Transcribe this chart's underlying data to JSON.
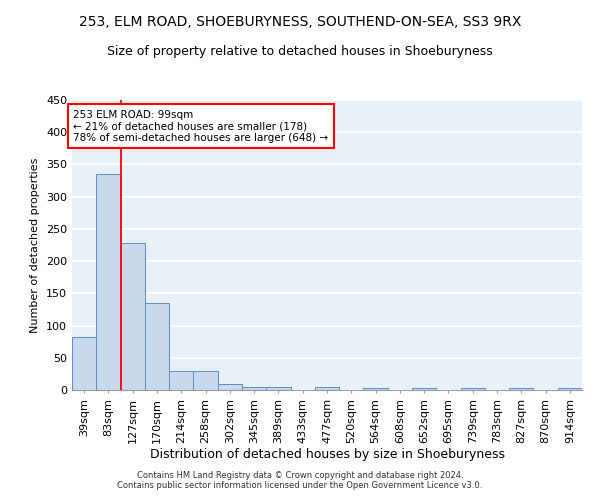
{
  "title1": "253, ELM ROAD, SHOEBURYNESS, SOUTHEND-ON-SEA, SS3 9RX",
  "title2": "Size of property relative to detached houses in Shoeburyness",
  "xlabel": "Distribution of detached houses by size in Shoeburyness",
  "ylabel": "Number of detached properties",
  "footnote": "Contains HM Land Registry data © Crown copyright and database right 2024.\nContains public sector information licensed under the Open Government Licence v3.0.",
  "categories": [
    "39sqm",
    "83sqm",
    "127sqm",
    "170sqm",
    "214sqm",
    "258sqm",
    "302sqm",
    "345sqm",
    "389sqm",
    "433sqm",
    "477sqm",
    "520sqm",
    "564sqm",
    "608sqm",
    "652sqm",
    "695sqm",
    "739sqm",
    "783sqm",
    "827sqm",
    "870sqm",
    "914sqm"
  ],
  "values": [
    83,
    335,
    228,
    135,
    30,
    30,
    10,
    5,
    5,
    0,
    5,
    0,
    3,
    0,
    3,
    0,
    3,
    0,
    3,
    0,
    3
  ],
  "bar_color": "#c8d9ee",
  "bar_edge_color": "#5b8fc4",
  "red_line_x": 1.5,
  "annotation_text": "253 ELM ROAD: 99sqm\n← 21% of detached houses are smaller (178)\n78% of semi-detached houses are larger (648) →",
  "annotation_box_color": "white",
  "annotation_box_edge": "red",
  "ylim": [
    0,
    450
  ],
  "yticks": [
    0,
    50,
    100,
    150,
    200,
    250,
    300,
    350,
    400,
    450
  ],
  "background_color": "#e8f0f8",
  "grid_color": "white",
  "title1_fontsize": 10,
  "title2_fontsize": 9,
  "xlabel_fontsize": 9,
  "ylabel_fontsize": 8,
  "tick_fontsize": 8,
  "annot_fontsize": 7.5,
  "footnote_fontsize": 6
}
